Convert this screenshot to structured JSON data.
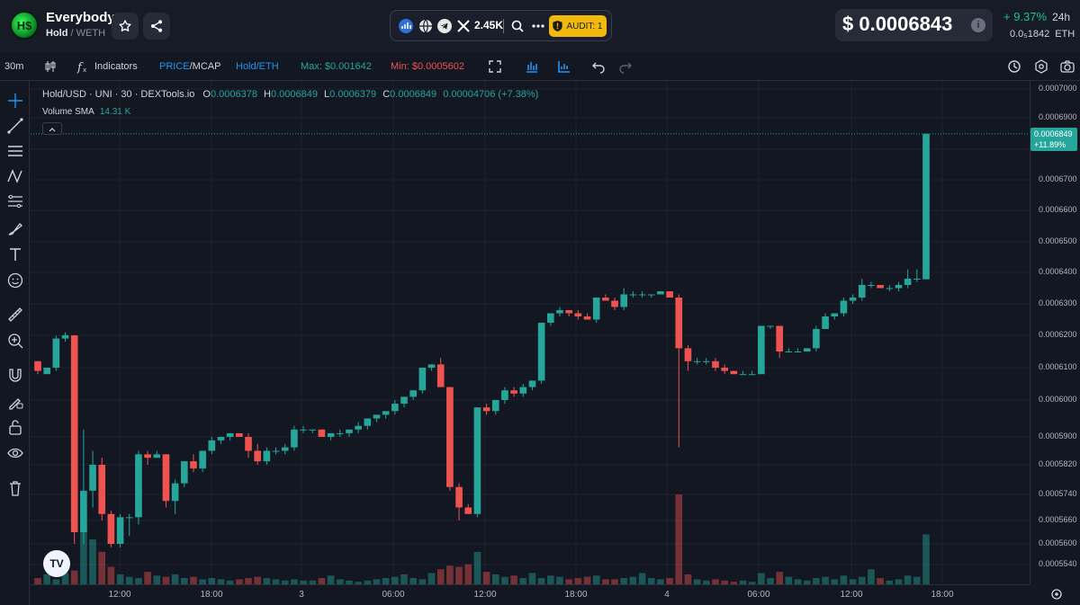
{
  "header": {
    "token_name": "Everybody",
    "token_symbol": "Hold",
    "pair_sep": "/",
    "pair_quote": "WETH",
    "social_count": "2.45K",
    "audit_label": "AUDIT: 1",
    "price": "$ 0.0006843",
    "change_pct": "+ 9.37%",
    "change_period": "24h",
    "eth_price": "0.0₅1842",
    "eth_unit": "ETH"
  },
  "toolbar": {
    "interval": "30m",
    "indicators": "Indicators",
    "price_mcap_a": "PRICE",
    "price_mcap_b": "/MCAP",
    "pair_label": "Hold/ETH",
    "max_label": "Max: $0.001642",
    "min_label": "Min: $0.0005602"
  },
  "legend": {
    "symbol": "Hold/USD · UNI · 30 · DEXTools.io",
    "o": "0.0006378",
    "h": "0.0006849",
    "l": "0.0006379",
    "c": "0.0006849",
    "chg": "0.00004706 (+7.38%)",
    "volume_label": "Volume SMA",
    "volume_value": "14.31 K"
  },
  "last_price_tag": {
    "price": "0.0006849",
    "pct": "+11.89%"
  },
  "colors": {
    "up": "#26a69a",
    "down": "#ef5350",
    "bg": "#131722",
    "accent": "#2196f3",
    "audit": "#f0b90b"
  },
  "chart_data": {
    "type": "candlestick",
    "ylim": [
      0.00055,
      0.0007
    ],
    "y_ticks": [
      "0.0007000",
      "0.0006900",
      "0.0006800",
      "0.0006700",
      "0.0006600",
      "0.0006500",
      "0.0006400",
      "0.0006300",
      "0.0006200",
      "0.0006100",
      "0.0006000",
      "0.0005900",
      "0.0005820",
      "0.0005740",
      "0.0005660",
      "0.0005600",
      "0.0005540"
    ],
    "x_ticks": [
      "12:00",
      "18:00",
      "3",
      "06:00",
      "12:00",
      "18:00",
      "4",
      "06:00",
      "12:00",
      "18:00"
    ],
    "candles": [
      [
        0.000612,
        0.000612,
        0.000608,
        0.000609
      ],
      [
        0.000608,
        0.00061,
        0.000608,
        0.00061
      ],
      [
        0.00061,
        0.00062,
        0.000609,
        0.000619
      ],
      [
        0.000619,
        0.000621,
        0.000618,
        0.00062
      ],
      [
        0.00062,
        0.00062,
        0.00056,
        0.000563
      ],
      [
        0.000563,
        0.000592,
        0.00056,
        0.000575
      ],
      [
        0.000575,
        0.000586,
        0.00057,
        0.000582
      ],
      [
        0.000582,
        0.000584,
        0.000566,
        0.000568
      ],
      [
        0.000568,
        0.000569,
        0.000559,
        0.00056
      ],
      [
        0.00056,
        0.000568,
        0.000559,
        0.000567
      ],
      [
        0.000567,
        0.000568,
        0.000562,
        0.000567
      ],
      [
        0.000567,
        0.000586,
        0.000565,
        0.000585
      ],
      [
        0.000585,
        0.000586,
        0.000582,
        0.000584
      ],
      [
        0.000584,
        0.000586,
        0.000584,
        0.000585
      ],
      [
        0.000585,
        0.000585,
        0.00057,
        0.000572
      ],
      [
        0.000572,
        0.000578,
        0.000568,
        0.000577
      ],
      [
        0.000577,
        0.000583,
        0.000576,
        0.000583
      ],
      [
        0.000583,
        0.000585,
        0.00058,
        0.000581
      ],
      [
        0.000581,
        0.000586,
        0.00058,
        0.000586
      ],
      [
        0.000586,
        0.00059,
        0.000585,
        0.000589
      ],
      [
        0.000589,
        0.00059,
        0.000588,
        0.00059
      ],
      [
        0.00059,
        0.000591,
        0.000589,
        0.000591
      ],
      [
        0.000591,
        0.000591,
        0.00059,
        0.00059
      ],
      [
        0.00059,
        0.000591,
        0.000584,
        0.000586
      ],
      [
        0.000586,
        0.000588,
        0.000582,
        0.000583
      ],
      [
        0.000583,
        0.000587,
        0.000582,
        0.000586
      ],
      [
        0.000586,
        0.000587,
        0.000585,
        0.000586
      ],
      [
        0.000586,
        0.000588,
        0.000585,
        0.000587
      ],
      [
        0.000587,
        0.000593,
        0.000586,
        0.000592
      ],
      [
        0.000592,
        0.000593,
        0.000591,
        0.000592
      ],
      [
        0.000592,
        0.000592,
        0.000591,
        0.000592
      ],
      [
        0.000592,
        0.000592,
        0.00059,
        0.00059
      ],
      [
        0.00059,
        0.000591,
        0.000589,
        0.000591
      ],
      [
        0.000591,
        0.000592,
        0.00059,
        0.000591
      ],
      [
        0.000591,
        0.000592,
        0.00059,
        0.000592
      ],
      [
        0.000592,
        0.000594,
        0.000591,
        0.000593
      ],
      [
        0.000593,
        0.000595,
        0.000592,
        0.000595
      ],
      [
        0.000595,
        0.000596,
        0.000594,
        0.000596
      ],
      [
        0.000596,
        0.000597,
        0.000595,
        0.000597
      ],
      [
        0.000597,
        0.0006,
        0.000596,
        0.000599
      ],
      [
        0.000599,
        0.000601,
        0.000598,
        0.000601
      ],
      [
        0.000601,
        0.000603,
        0.0006,
        0.000603
      ],
      [
        0.000603,
        0.00061,
        0.000602,
        0.00061
      ],
      [
        0.00061,
        0.000611,
        0.000609,
        0.000611
      ],
      [
        0.000611,
        0.000613,
        0.000604,
        0.000604
      ],
      [
        0.000604,
        0.000604,
        0.000575,
        0.000576
      ],
      [
        0.000576,
        0.000577,
        0.000566,
        0.00057
      ],
      [
        0.00057,
        0.000571,
        0.000568,
        0.000568
      ],
      [
        0.000568,
        0.000598,
        0.000567,
        0.000598
      ],
      [
        0.000598,
        0.000599,
        0.000596,
        0.000597
      ],
      [
        0.000597,
        0.0006,
        0.000596,
        0.0006
      ],
      [
        0.0006,
        0.000604,
        0.000599,
        0.000603
      ],
      [
        0.000603,
        0.000604,
        0.000601,
        0.000602
      ],
      [
        0.000602,
        0.000605,
        0.000601,
        0.000604
      ],
      [
        0.000604,
        0.000606,
        0.000603,
        0.000606
      ],
      [
        0.000606,
        0.000624,
        0.000605,
        0.000624
      ],
      [
        0.000624,
        0.000627,
        0.000623,
        0.000627
      ],
      [
        0.000627,
        0.000629,
        0.000626,
        0.000628
      ],
      [
        0.000628,
        0.000628,
        0.000626,
        0.000627
      ],
      [
        0.000627,
        0.000628,
        0.000625,
        0.000626
      ],
      [
        0.000626,
        0.000627,
        0.000625,
        0.000625
      ],
      [
        0.000625,
        0.000632,
        0.000624,
        0.000632
      ],
      [
        0.000632,
        0.000633,
        0.000631,
        0.000631
      ],
      [
        0.000631,
        0.000632,
        0.000628,
        0.000629
      ],
      [
        0.000629,
        0.000635,
        0.000628,
        0.000633
      ],
      [
        0.000633,
        0.000634,
        0.000632,
        0.000633
      ],
      [
        0.000633,
        0.000634,
        0.000632,
        0.000633
      ],
      [
        0.000633,
        0.000633,
        0.000632,
        0.000633
      ],
      [
        0.000633,
        0.000634,
        0.000633,
        0.000634
      ],
      [
        0.000634,
        0.000634,
        0.000632,
        0.000632
      ],
      [
        0.000632,
        0.000633,
        0.000587,
        0.000616
      ],
      [
        0.000616,
        0.000617,
        0.000609,
        0.000612
      ],
      [
        0.000612,
        0.000613,
        0.000611,
        0.000612
      ],
      [
        0.000612,
        0.000613,
        0.000611,
        0.000612
      ],
      [
        0.000612,
        0.000613,
        0.000609,
        0.00061
      ],
      [
        0.00061,
        0.000611,
        0.000608,
        0.000609
      ],
      [
        0.000609,
        0.000609,
        0.000608,
        0.000608
      ],
      [
        0.000608,
        0.000609,
        0.000608,
        0.000608
      ],
      [
        0.000608,
        0.000609,
        0.000608,
        0.000608
      ],
      [
        0.000608,
        0.000623,
        0.000608,
        0.000623
      ],
      [
        0.000623,
        0.000623,
        0.000622,
        0.000623
      ],
      [
        0.000623,
        0.000623,
        0.000613,
        0.000615
      ],
      [
        0.000615,
        0.000616,
        0.000615,
        0.000615
      ],
      [
        0.000615,
        0.000616,
        0.000615,
        0.000615
      ],
      [
        0.000615,
        0.000616,
        0.000615,
        0.000616
      ],
      [
        0.000616,
        0.000623,
        0.000615,
        0.000622
      ],
      [
        0.000622,
        0.000627,
        0.000622,
        0.000626
      ],
      [
        0.000626,
        0.000627,
        0.000625,
        0.000627
      ],
      [
        0.000627,
        0.000632,
        0.000626,
        0.000631
      ],
      [
        0.000631,
        0.000633,
        0.00063,
        0.000632
      ],
      [
        0.000632,
        0.000638,
        0.000631,
        0.000636
      ],
      [
        0.000636,
        0.000637,
        0.000635,
        0.000636
      ],
      [
        0.000636,
        0.000636,
        0.000635,
        0.000635
      ],
      [
        0.000635,
        0.000636,
        0.000634,
        0.000635
      ],
      [
        0.000635,
        0.000637,
        0.000634,
        0.000636
      ],
      [
        0.000636,
        0.000641,
        0.000635,
        0.000638
      ],
      [
        0.000638,
        0.000641,
        0.000637,
        0.000638
      ],
      [
        0.0006378,
        0.0006849,
        0.0006379,
        0.0006849
      ]
    ],
    "volumes": [
      0.5,
      0.8,
      0.4,
      0.9,
      1.1,
      4.6,
      3.6,
      2.6,
      1.4,
      0.8,
      0.6,
      0.5,
      1.0,
      0.7,
      0.6,
      0.8,
      0.5,
      0.6,
      0.4,
      0.5,
      0.4,
      0.3,
      0.4,
      0.5,
      0.6,
      0.5,
      0.4,
      0.3,
      0.4,
      0.3,
      0.3,
      0.5,
      0.7,
      0.4,
      0.3,
      0.2,
      0.3,
      0.4,
      0.5,
      0.6,
      0.8,
      0.5,
      0.4,
      0.9,
      1.2,
      1.5,
      1.4,
      1.6,
      2.6,
      1.0,
      0.8,
      0.6,
      0.7,
      0.5,
      0.9,
      0.5,
      0.7,
      0.6,
      0.4,
      0.5,
      0.6,
      0.7,
      0.4,
      0.4,
      0.5,
      0.6,
      0.9,
      0.5,
      0.4,
      0.5,
      7.2,
      0.8,
      0.4,
      0.3,
      0.4,
      0.3,
      0.2,
      0.3,
      0.2,
      0.9,
      0.5,
      1.0,
      0.6,
      0.4,
      0.3,
      0.5,
      0.6,
      0.4,
      0.7,
      0.4,
      0.6,
      1.2,
      0.5,
      0.3,
      0.4,
      0.7,
      0.6,
      4.0
    ]
  }
}
